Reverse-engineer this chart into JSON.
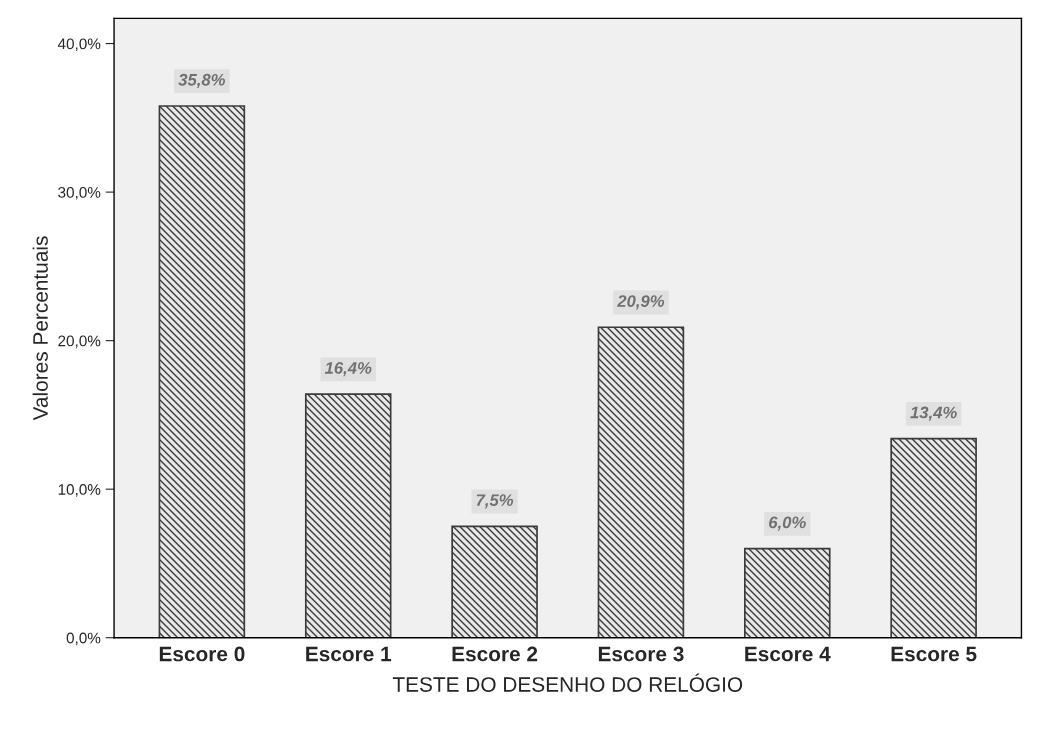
{
  "chart_data": {
    "type": "bar",
    "xlabel": "TESTE DO DESENHO DO RELÓGIO",
    "ylabel": "Valores Percentuais",
    "categories": [
      "Escore 0",
      "Escore 1",
      "Escore 2",
      "Escore 3",
      "Escore 4",
      "Escore 5"
    ],
    "values": [
      35.8,
      16.4,
      7.5,
      20.9,
      6.0,
      13.4
    ],
    "value_labels": [
      "35,8%",
      "16,4%",
      "7,5%",
      "20,9%",
      "6,0%",
      "13,4%"
    ],
    "color": "#3a3a3a",
    "ylim": [
      0,
      41.7
    ],
    "yticks": [
      {
        "value": 0,
        "label": "0,0%"
      },
      {
        "value": 10,
        "label": "10,0%"
      },
      {
        "value": 20,
        "label": "20,0%"
      },
      {
        "value": 30,
        "label": "30,0%"
      },
      {
        "value": 40,
        "label": "40,0%"
      }
    ],
    "grid": false
  }
}
